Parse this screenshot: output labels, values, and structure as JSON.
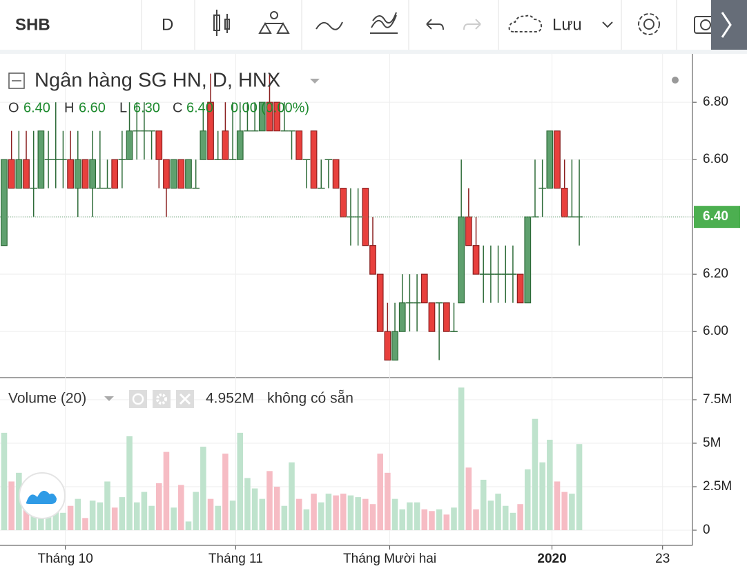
{
  "toolbar": {
    "symbol": "SHB",
    "interval": "D",
    "save": "Lưu"
  },
  "chart_data": [
    {
      "type": "candlestick",
      "title": "Ngân hàng SG HN, D, HNX",
      "legend": {
        "o_label": "O",
        "o": "6.40",
        "h_label": "H",
        "h": "6.60",
        "l_label": "L",
        "l": "6.30",
        "c_label": "C",
        "c": "6.40",
        "change": "0.00",
        "change_pct": "(0.00%)"
      },
      "open": [
        6.3,
        6.6,
        6.5,
        6.6,
        6.5,
        6.5,
        6.6,
        6.6,
        6.6,
        6.6,
        6.5,
        6.6,
        6.5,
        6.5,
        6.5,
        6.6,
        6.6,
        6.6,
        6.7,
        6.7,
        6.7,
        6.7,
        6.6,
        6.5,
        6.6,
        6.5,
        6.5,
        6.6,
        6.8,
        6.6,
        6.7,
        6.6,
        6.6,
        6.7,
        6.7,
        6.7,
        6.8,
        6.8,
        6.7,
        6.7,
        6.7,
        6.6,
        6.7,
        6.5,
        6.6,
        6.6,
        6.5,
        6.4,
        6.4,
        6.5,
        6.3,
        6.2,
        6.0,
        5.9,
        6.0,
        6.1,
        6.1,
        6.2,
        6.1,
        6.1,
        6.1,
        6.0,
        6.1,
        6.4,
        6.3,
        6.2,
        6.2,
        6.2,
        6.2,
        6.2,
        6.2,
        6.1,
        6.4,
        6.5,
        6.5,
        6.7,
        6.5,
        6.4,
        6.4
      ],
      "high": [
        6.6,
        6.7,
        6.7,
        6.7,
        6.7,
        6.7,
        6.7,
        6.8,
        6.7,
        6.7,
        6.7,
        6.6,
        6.7,
        6.7,
        6.6,
        6.6,
        6.7,
        6.8,
        6.8,
        6.8,
        6.7,
        6.7,
        6.6,
        6.6,
        6.6,
        6.6,
        6.6,
        6.8,
        6.9,
        6.7,
        6.8,
        6.8,
        6.8,
        6.8,
        6.8,
        6.8,
        6.9,
        6.8,
        6.8,
        6.7,
        6.7,
        6.6,
        6.7,
        6.6,
        6.6,
        6.6,
        6.5,
        6.5,
        6.5,
        6.5,
        6.4,
        6.2,
        6.1,
        6.1,
        6.2,
        6.2,
        6.2,
        6.2,
        6.1,
        6.1,
        6.1,
        6.1,
        6.6,
        6.5,
        6.4,
        6.3,
        6.3,
        6.3,
        6.3,
        6.3,
        6.2,
        6.4,
        6.6,
        6.6,
        6.7,
        6.7,
        6.6,
        6.6,
        6.6
      ],
      "low": [
        6.3,
        6.5,
        6.5,
        6.5,
        6.4,
        6.5,
        6.5,
        6.5,
        6.5,
        6.5,
        6.4,
        6.5,
        6.4,
        6.5,
        6.5,
        6.5,
        6.5,
        6.6,
        6.6,
        6.6,
        6.6,
        6.5,
        6.4,
        6.5,
        6.5,
        6.5,
        6.5,
        6.6,
        6.6,
        6.6,
        6.6,
        6.6,
        6.6,
        6.7,
        6.7,
        6.7,
        6.7,
        6.7,
        6.7,
        6.6,
        6.6,
        6.5,
        6.5,
        6.5,
        6.5,
        6.5,
        6.4,
        6.3,
        6.3,
        6.3,
        6.2,
        6.0,
        5.9,
        5.9,
        6.0,
        6.0,
        6.0,
        6.1,
        6.0,
        5.9,
        6.0,
        6.0,
        6.1,
        6.3,
        6.2,
        6.1,
        6.1,
        6.1,
        6.1,
        6.1,
        6.1,
        6.1,
        6.4,
        6.4,
        6.5,
        6.5,
        6.4,
        6.4,
        6.3
      ],
      "close": [
        6.6,
        6.5,
        6.6,
        6.5,
        6.5,
        6.7,
        6.6,
        6.6,
        6.6,
        6.5,
        6.6,
        6.5,
        6.6,
        6.5,
        6.5,
        6.5,
        6.6,
        6.7,
        6.7,
        6.7,
        6.7,
        6.6,
        6.5,
        6.6,
        6.5,
        6.6,
        6.5,
        6.7,
        6.6,
        6.6,
        6.6,
        6.6,
        6.7,
        6.7,
        6.7,
        6.8,
        6.7,
        6.7,
        6.7,
        6.7,
        6.6,
        6.6,
        6.5,
        6.5,
        6.6,
        6.5,
        6.4,
        6.4,
        6.4,
        6.3,
        6.2,
        6.0,
        5.9,
        6.0,
        6.1,
        6.1,
        6.1,
        6.1,
        6.0,
        6.1,
        6.0,
        6.0,
        6.4,
        6.3,
        6.2,
        6.2,
        6.2,
        6.2,
        6.2,
        6.2,
        6.1,
        6.4,
        6.4,
        6.5,
        6.7,
        6.5,
        6.4,
        6.4,
        6.4
      ],
      "up_color": "#5fa06e",
      "down_color": "#e8403d",
      "up_border": "#2d6b38",
      "down_border": "#8a1f1f",
      "ylim": [
        5.839,
        6.969
      ],
      "yticks": [
        {
          "value": 6.0,
          "label": "6.00"
        },
        {
          "value": 6.2,
          "label": "6.20"
        },
        {
          "value": 6.4,
          "label": "6.40"
        },
        {
          "value": 6.6,
          "label": "6.60"
        },
        {
          "value": 6.8,
          "label": "6.80"
        }
      ],
      "last_price": {
        "value": 6.4,
        "label": "6.40"
      },
      "xlim": [
        -0.56,
        93.35
      ],
      "xticks": [
        {
          "value": 8.3,
          "label": "Tháng 10"
        },
        {
          "value": 31.4,
          "label": "Tháng 11"
        },
        {
          "value": 52.3,
          "label": "Tháng Mười hai"
        },
        {
          "value": 74.3,
          "label": "2020",
          "bold": true
        },
        {
          "value": 89.3,
          "label": "23"
        }
      ],
      "grid": true
    },
    {
      "type": "bar",
      "title": "Volume (20)",
      "legend_value": "4.952M",
      "legend_note": "không có sẵn",
      "values": [
        5.6,
        2.8,
        3.3,
        2.2,
        1.8,
        1.5,
        1.7,
        1.2,
        1.0,
        1.4,
        1.8,
        0.7,
        1.7,
        1.6,
        2.8,
        1.3,
        1.9,
        5.4,
        1.6,
        2.2,
        1.4,
        2.7,
        4.5,
        1.3,
        2.6,
        0.5,
        2.2,
        4.8,
        1.8,
        1.4,
        4.4,
        1.7,
        5.6,
        3.0,
        2.4,
        1.8,
        3.4,
        2.5,
        1.4,
        3.9,
        1.8,
        1.2,
        2.1,
        1.6,
        2.1,
        2.0,
        2.1,
        2.0,
        1.9,
        1.8,
        1.5,
        4.4,
        3.3,
        1.8,
        1.2,
        1.6,
        1.6,
        1.2,
        1.1,
        1.2,
        0.9,
        1.3,
        8.2,
        3.6,
        1.2,
        2.9,
        1.7,
        2.1,
        1.4,
        1.0,
        1.5,
        3.5,
        6.4,
        3.9,
        5.2,
        2.8,
        2.2,
        2.1,
        4.952
      ],
      "up_color": "#bfe3cd",
      "down_color": "#f6bcc4",
      "ylim": [
        -0.873,
        8.77
      ],
      "yticks": [
        0,
        {
          "value": 2.5,
          "label": "2.5M"
        },
        {
          "value": 5,
          "label": "5M"
        },
        {
          "value": 7.5,
          "label": "7.5M"
        }
      ]
    }
  ]
}
